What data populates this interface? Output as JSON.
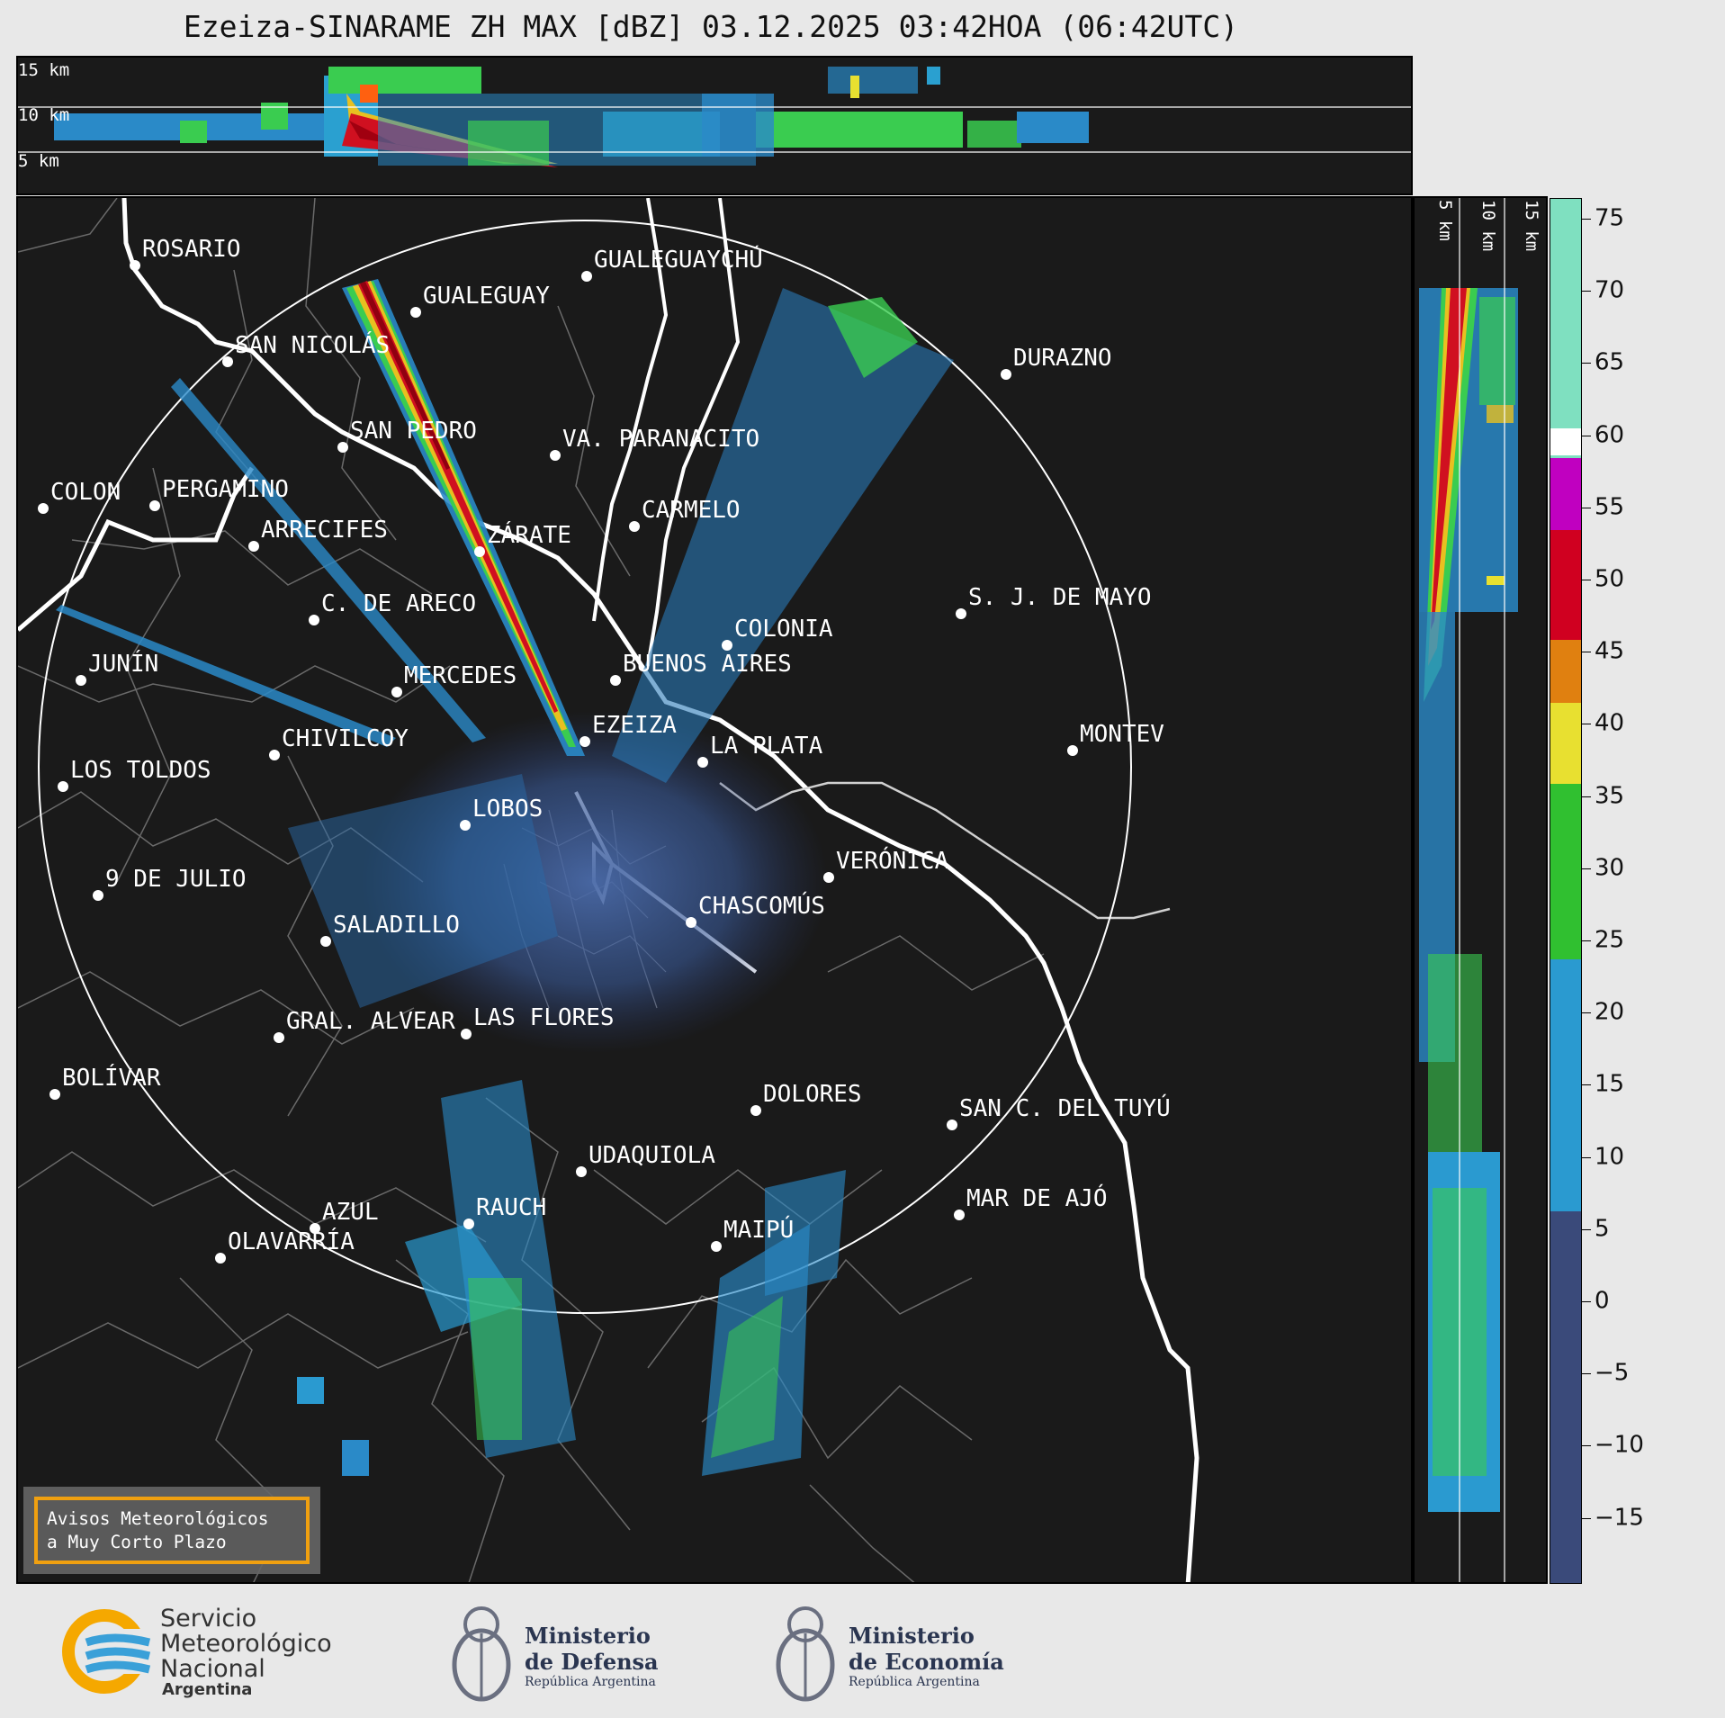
{
  "title": "Ezeiza-SINARAME ZH MAX [dBZ] 03.12.2025 03:42HOA (06:42UTC)",
  "top_panel": {
    "heights": [
      "15 km",
      "10 km",
      "5 km"
    ]
  },
  "side_panel": {
    "heights": [
      "5 km",
      "10 km",
      "15 km"
    ]
  },
  "colorbar": {
    "unit": "dBZ",
    "ticks": [
      "75",
      "70",
      "65",
      "60",
      "55",
      "50",
      "45",
      "40",
      "35",
      "30",
      "25",
      "20",
      "15",
      "10",
      "5",
      "0",
      "−5",
      "−10",
      "−15"
    ],
    "colors": {
      "teal": "#7fe0c0",
      "white": "#ffffff",
      "magenta": "#e000e0",
      "red": "#d00020",
      "orange": "#e08010",
      "yellow": "#e8e030",
      "green": "#30c030",
      "blue": "#2a9ad0",
      "slate": "#3a4a7a"
    }
  },
  "cities": [
    {
      "name": "ROSARIO"
    },
    {
      "name": "GUALEGUAYCHÚ"
    },
    {
      "name": "GUALEGUAY"
    },
    {
      "name": "SAN NICOLÁS"
    },
    {
      "name": "DURAZNO"
    },
    {
      "name": "SAN PEDRO"
    },
    {
      "name": "VA. PARANACITO"
    },
    {
      "name": "COLON"
    },
    {
      "name": "PERGAMINO"
    },
    {
      "name": "CARMELO"
    },
    {
      "name": "ARRECIFES"
    },
    {
      "name": "ZÁRATE"
    },
    {
      "name": "C. DE ARECO"
    },
    {
      "name": "S. J. DE MAYO"
    },
    {
      "name": "COLONIA"
    },
    {
      "name": "JUNÍN"
    },
    {
      "name": "BUENOS AIRES"
    },
    {
      "name": "MERCEDES"
    },
    {
      "name": "EZEIZA"
    },
    {
      "name": "MONTEV"
    },
    {
      "name": "CHIVILCOY"
    },
    {
      "name": "LA PLATA"
    },
    {
      "name": "LOS TOLDOS"
    },
    {
      "name": "LOBOS"
    },
    {
      "name": "VERÓNICA"
    },
    {
      "name": "9 DE JULIO"
    },
    {
      "name": "CHASCOMÚS"
    },
    {
      "name": "SALADILLO"
    },
    {
      "name": "GRAL. ALVEAR"
    },
    {
      "name": "LAS FLORES"
    },
    {
      "name": "BOLÍVAR"
    },
    {
      "name": "DOLORES"
    },
    {
      "name": "SAN C. DEL TUYÚ"
    },
    {
      "name": "UDAQUIOLA"
    },
    {
      "name": "AZUL"
    },
    {
      "name": "RAUCH"
    },
    {
      "name": "MAR DE AJÓ"
    },
    {
      "name": "MAIPÚ"
    },
    {
      "name": "OLAVARRÍA"
    }
  ],
  "notice": {
    "line1": "Avisos Meteorológicos",
    "line2": "a Muy Corto Plazo"
  },
  "logos": {
    "smn": {
      "l1": "Servicio",
      "l2": "Meteorológico",
      "l3": "Nacional",
      "l4": "Argentina"
    },
    "defensa": {
      "l1": "Ministerio",
      "l2": "de Defensa",
      "l3": "República Argentina"
    },
    "economia": {
      "l1": "Ministerio",
      "l2": "de Economía",
      "l3": "República Argentina"
    }
  }
}
